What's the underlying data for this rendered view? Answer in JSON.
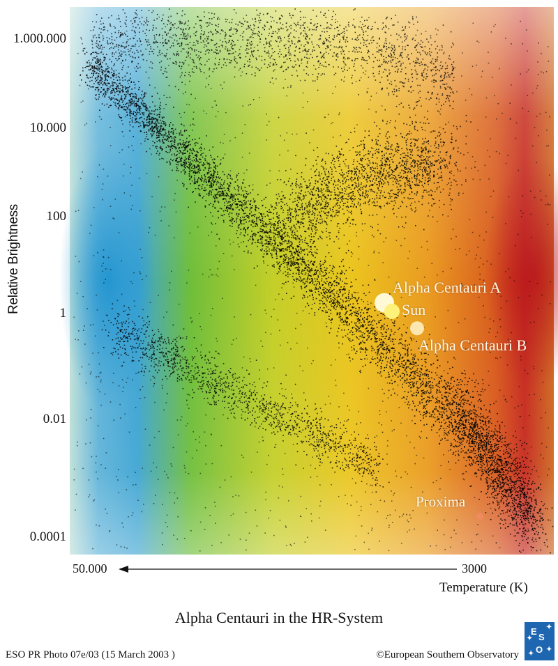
{
  "chart_data": {
    "type": "scatter",
    "title": "Alpha Centauri in the HR-System",
    "ylabel": "Relative Brightness",
    "xlabel": "Temperature (K)",
    "y_scale": "log",
    "ylim": [
      3e-05,
      3000000
    ],
    "y_ticks": [
      {
        "value": 1000000,
        "label": "1.000.000"
      },
      {
        "value": 10000,
        "label": "10.000"
      },
      {
        "value": 100,
        "label": "100"
      },
      {
        "value": 1,
        "label": "1"
      },
      {
        "value": 0.01,
        "label": "0.01"
      },
      {
        "value": 0.0001,
        "label": "0.0001"
      }
    ],
    "x_axis": {
      "direction": "temperature decreases to the right",
      "left_label": "50.000",
      "right_label": "3000"
    },
    "series": [
      {
        "name": "Alpha Centauri A",
        "temperature_k": 5800,
        "brightness": 1.5,
        "color": "#fff9d6"
      },
      {
        "name": "Sun",
        "temperature_k": 5780,
        "brightness": 1.0,
        "color": "#fff27a"
      },
      {
        "name": "Alpha Centauri B",
        "temperature_k": 5200,
        "brightness": 0.45,
        "color": "#fde7b0"
      },
      {
        "name": "Proxima",
        "temperature_k": 3000,
        "brightness": 6e-05,
        "color": "#f08a60"
      }
    ]
  },
  "footer": {
    "photo_id": "ESO PR Photo 07e/03 (15 March 2003 )",
    "copyright": "©European Southern Observatory"
  },
  "logo": {
    "letters": [
      "E",
      "S",
      "O"
    ]
  },
  "colors": {
    "blue_hot": "#3aa3d6",
    "green": "#7fc02a",
    "yellow": "#e6c21e",
    "orange": "#e68a1e",
    "red_cool": "#c82a1e"
  }
}
